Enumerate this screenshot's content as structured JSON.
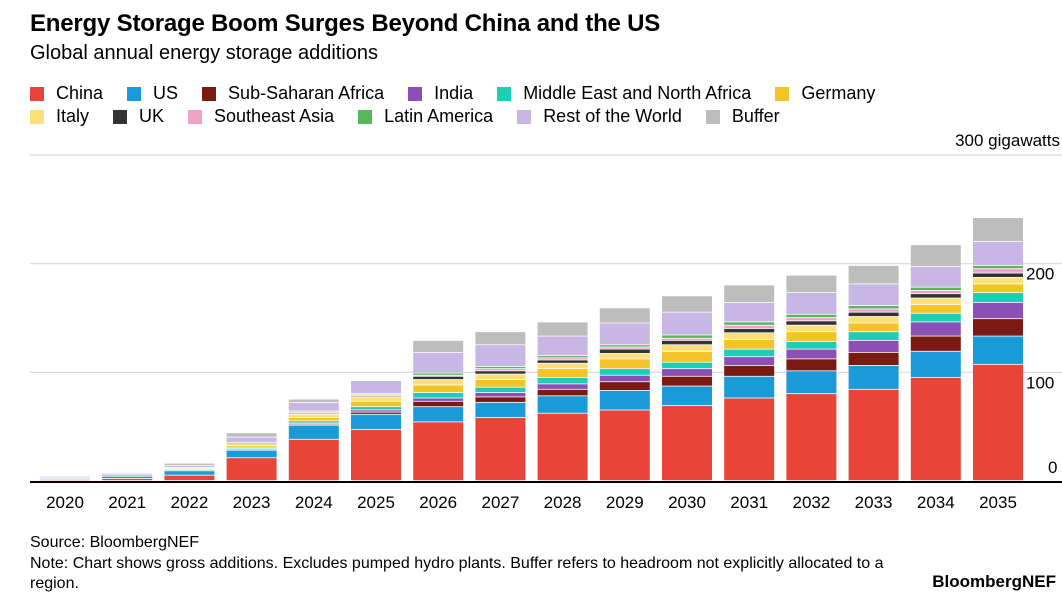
{
  "title": "Energy Storage Boom Surges Beyond China and the US",
  "subtitle": "Global annual energy storage additions",
  "source": "Source: BloombergNEF",
  "note": "Note: Chart shows gross additions. Excludes pumped hydro plants. Buffer refers to headroom not explicitly allocated to a region.",
  "brand": "BloombergNEF",
  "chart_data": {
    "type": "bar",
    "stacked": true,
    "title": "Energy Storage Boom Surges Beyond China and the US",
    "subtitle": "Global annual energy storage additions",
    "ylabel": "300 gigawatts",
    "ylim": [
      0,
      300
    ],
    "yticks": [
      0,
      100,
      200
    ],
    "ytick_labels": [
      "0",
      "100",
      "200"
    ],
    "top_label": "300 gigawatts",
    "grid": true,
    "legend_position": "top",
    "categories": [
      "2020",
      "2021",
      "2022",
      "2023",
      "2024",
      "2025",
      "2026",
      "2027",
      "2028",
      "2029",
      "2030",
      "2031",
      "2032",
      "2033",
      "2034",
      "2035"
    ],
    "series": [
      {
        "name": "China",
        "color": "#e8443a",
        "values": [
          1,
          2,
          5,
          21,
          38,
          47,
          54,
          58,
          62,
          65,
          69,
          76,
          80,
          84,
          95,
          107
        ]
      },
      {
        "name": "US",
        "color": "#1a9ad6",
        "values": [
          1,
          2,
          4,
          7,
          13,
          14,
          14,
          14,
          16,
          18,
          18,
          20,
          21,
          22,
          24,
          26
        ]
      },
      {
        "name": "Sub-Saharan Africa",
        "color": "#7a1a12",
        "values": [
          0,
          0,
          0,
          0,
          1,
          2,
          5,
          5,
          6,
          8,
          9,
          10,
          11,
          12,
          14,
          16
        ]
      },
      {
        "name": "India",
        "color": "#8a50b8",
        "values": [
          0,
          0,
          0,
          1,
          1,
          2,
          3,
          4,
          5,
          6,
          7,
          8,
          9,
          11,
          13,
          15
        ]
      },
      {
        "name": "Middle East and North Africa",
        "color": "#1dcdb5",
        "values": [
          0,
          0,
          1,
          1,
          2,
          3,
          5,
          5,
          6,
          6,
          6,
          7,
          7,
          8,
          8,
          9
        ]
      },
      {
        "name": "Germany",
        "color": "#f4c326",
        "values": [
          0,
          0,
          1,
          2,
          3,
          5,
          7,
          7,
          8,
          9,
          10,
          9,
          9,
          8,
          8,
          8
        ]
      },
      {
        "name": "Italy",
        "color": "#fbe07a",
        "values": [
          0,
          0,
          1,
          2,
          3,
          4,
          5,
          5,
          5,
          5,
          6,
          6,
          6,
          6,
          6,
          6
        ]
      },
      {
        "name": "UK",
        "color": "#333333",
        "values": [
          0,
          0,
          0,
          1,
          1,
          1,
          3,
          3,
          3,
          4,
          4,
          4,
          4,
          4,
          4,
          4
        ]
      },
      {
        "name": "Southeast Asia",
        "color": "#f2a2c8",
        "values": [
          0,
          0,
          0,
          0,
          1,
          1,
          1,
          2,
          2,
          2,
          2,
          3,
          3,
          3,
          3,
          4
        ]
      },
      {
        "name": "Latin America",
        "color": "#56b85a",
        "values": [
          0,
          0,
          0,
          0,
          1,
          1,
          2,
          2,
          2,
          2,
          3,
          3,
          3,
          3,
          3,
          3
        ]
      },
      {
        "name": "Rest of the World",
        "color": "#c8b7e4",
        "values": [
          1,
          2,
          2,
          5,
          8,
          12,
          19,
          20,
          18,
          20,
          21,
          18,
          20,
          20,
          19,
          22
        ]
      },
      {
        "name": "Buffer",
        "color": "#bdbdbd",
        "values": [
          1,
          1,
          2,
          4,
          3,
          0,
          11,
          12,
          13,
          14,
          15,
          16,
          16,
          17,
          20,
          22
        ]
      }
    ]
  }
}
